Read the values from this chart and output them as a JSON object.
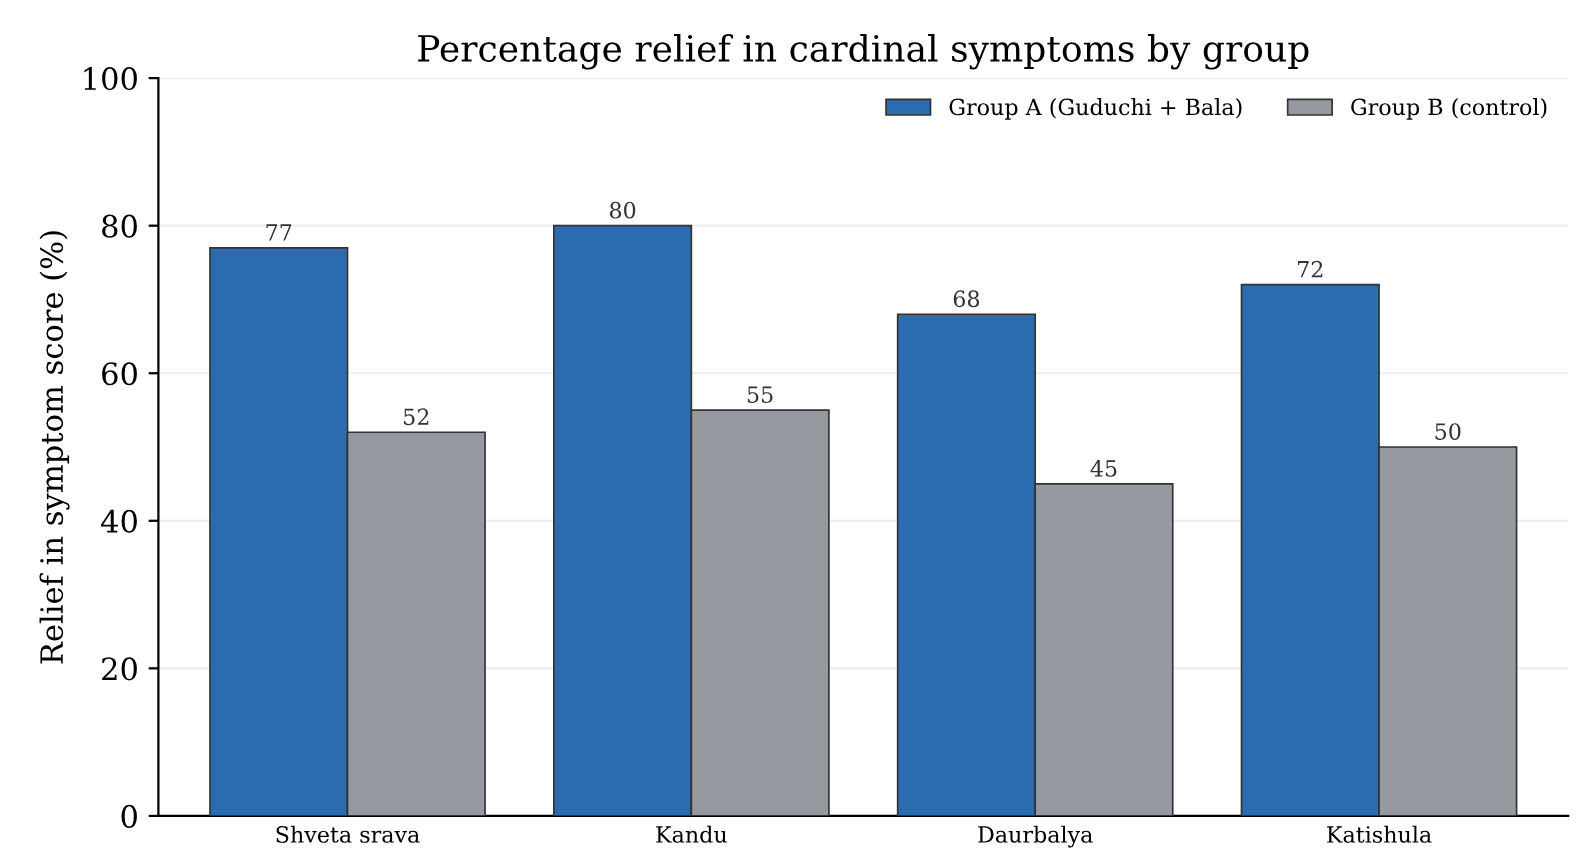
{
  "chart_data": {
    "type": "bar",
    "title": "Percentage relief in cardinal symptoms by group",
    "ylabel": "Relief in symptom score (%)",
    "categories": [
      "Shveta srava",
      "Kandu",
      "Daurbalya",
      "Katishula"
    ],
    "series": [
      {
        "name": "Group A (Guduchi + Bala)",
        "color": "#2b6cb0",
        "values": [
          77,
          80,
          68,
          72
        ]
      },
      {
        "name": "Group B (control)",
        "color": "#969aa0",
        "values": [
          52,
          55,
          45,
          50
        ]
      }
    ],
    "ylim": [
      0,
      100
    ],
    "yticks": [
      0,
      20,
      40,
      60,
      80,
      100
    ],
    "grid": "y",
    "legend": "top right",
    "data_labels": true
  }
}
